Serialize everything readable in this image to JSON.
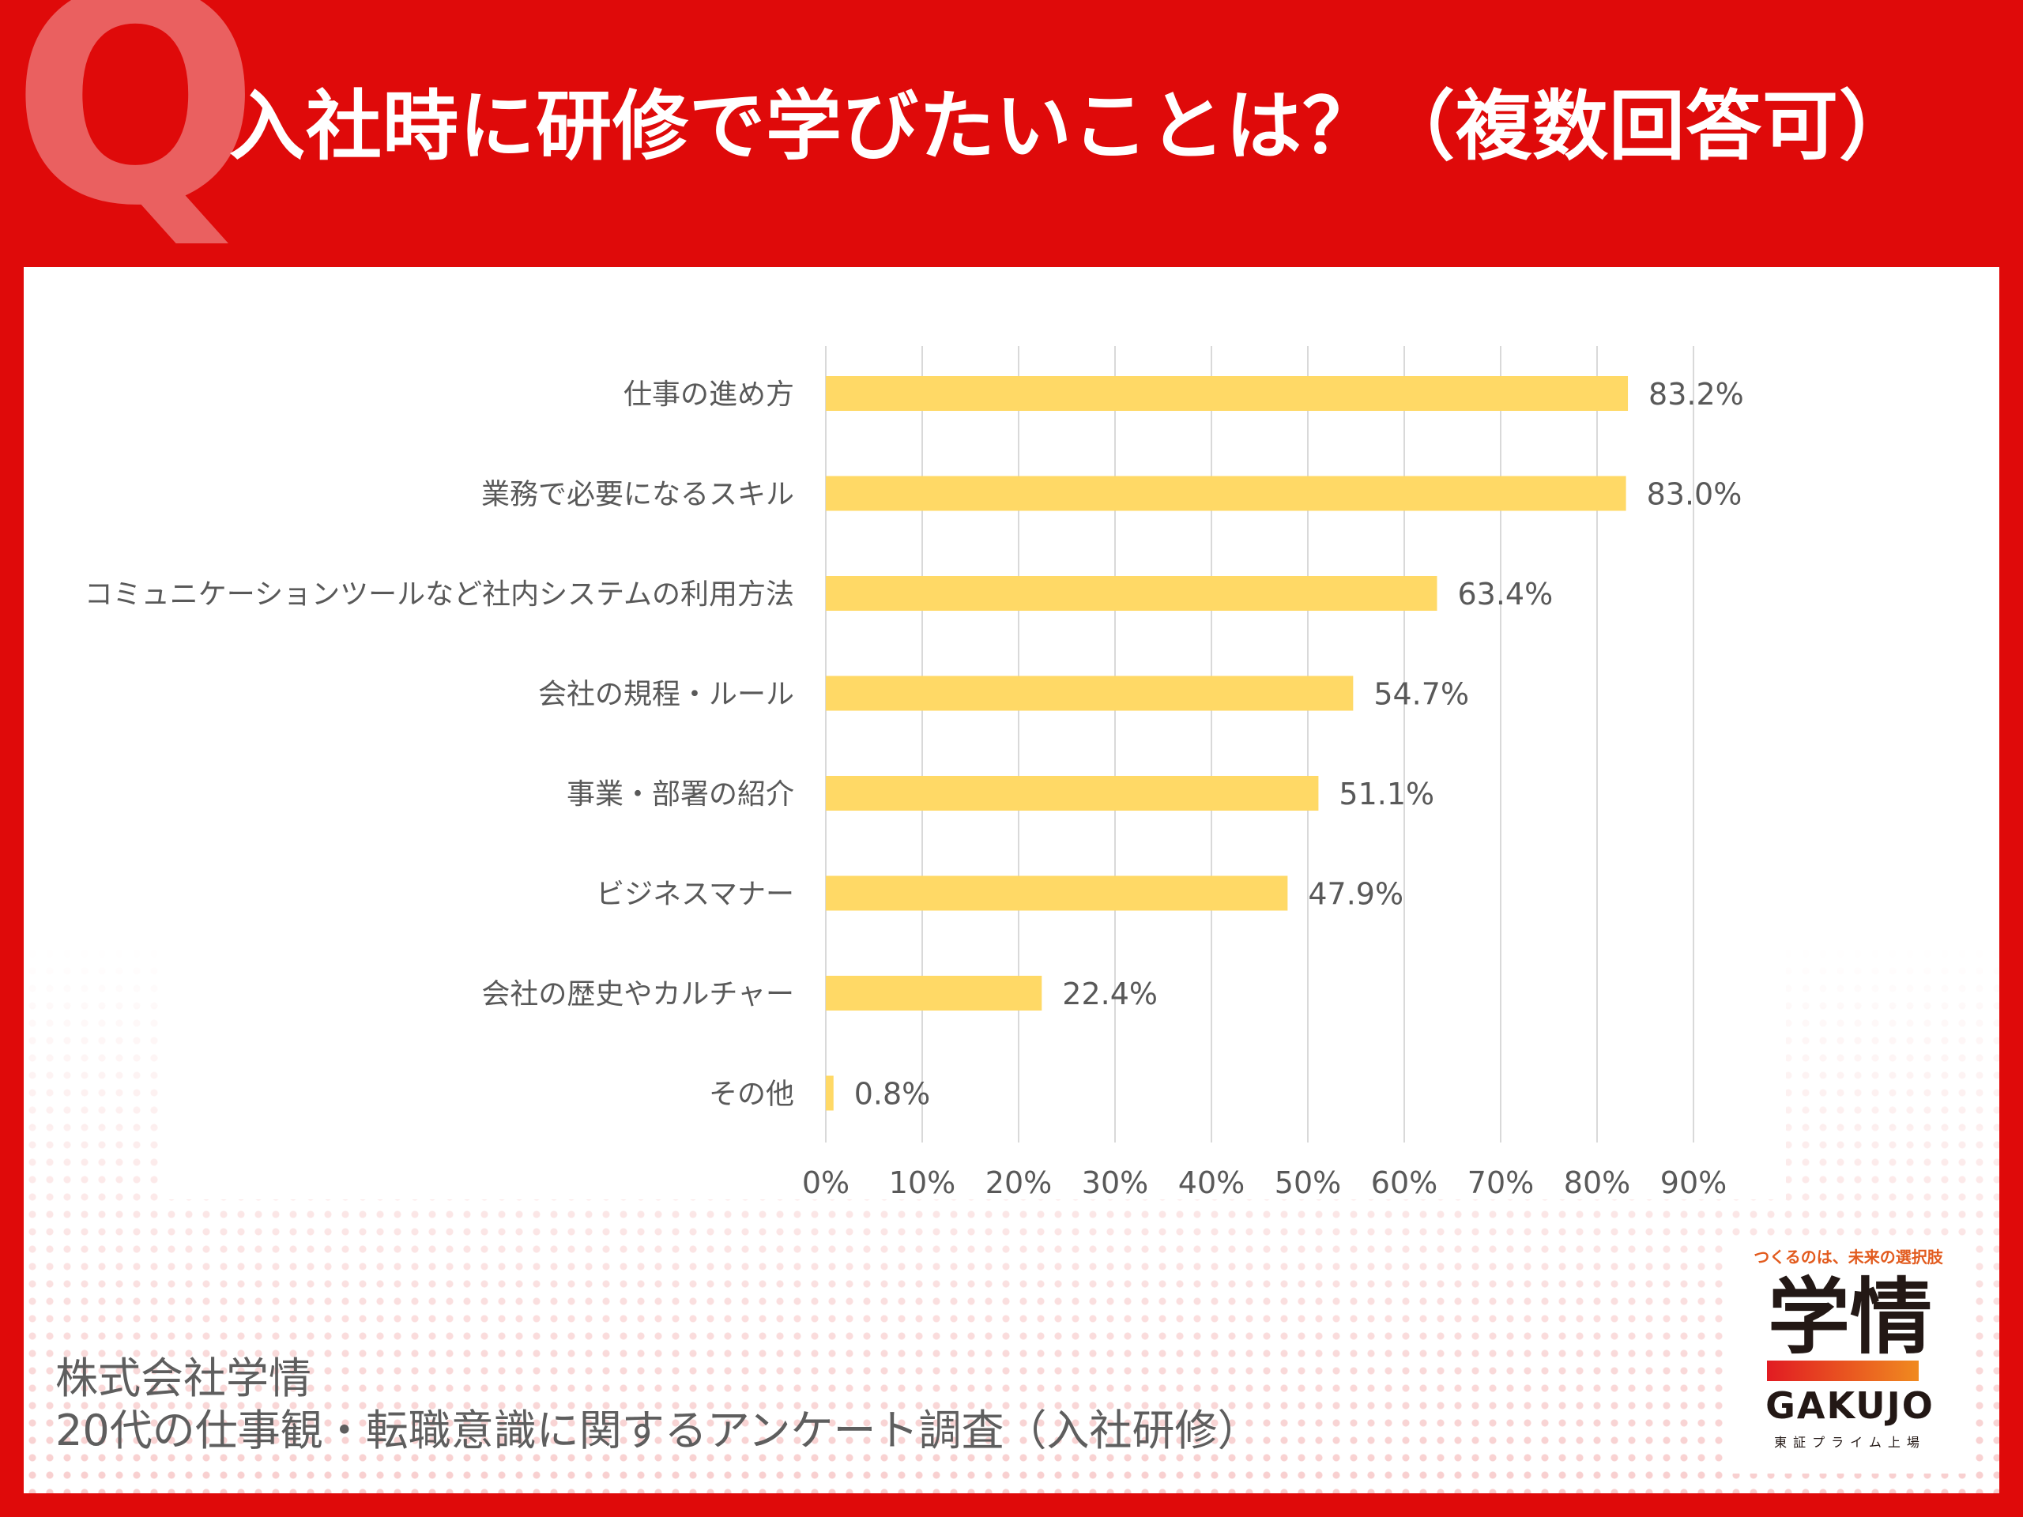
{
  "header": {
    "q_mark": "Q",
    "title": "入社時に研修で学びたいことは？（複数回答可）"
  },
  "colors": {
    "background": "#df0a0a",
    "q_mark": "#ea6060",
    "bar": "#ffd966",
    "gridline": "#d9d9d9",
    "text": "#595959"
  },
  "chart_data": {
    "type": "bar",
    "orientation": "horizontal",
    "categories": [
      "仕事の進め方",
      "業務で必要になるスキル",
      "コミュニケーションツールなど社内システムの利用方法",
      "会社の規程・ルール",
      "事業・部署の紹介",
      "ビジネスマナー",
      "会社の歴史やカルチャー",
      "その他"
    ],
    "values": [
      83.2,
      83.0,
      63.4,
      54.7,
      51.1,
      47.9,
      22.4,
      0.8
    ],
    "value_labels": [
      "83.2%",
      "83.0%",
      "63.4%",
      "54.7%",
      "51.1%",
      "47.9%",
      "22.4%",
      "0.8%"
    ],
    "x_ticks": [
      0,
      10,
      20,
      30,
      40,
      50,
      60,
      70,
      80,
      90
    ],
    "x_tick_labels": [
      "0%",
      "10%",
      "20%",
      "30%",
      "40%",
      "50%",
      "60%",
      "70%",
      "80%",
      "90%"
    ],
    "xlim": [
      0,
      90
    ],
    "grid": "vertical",
    "legend": "none"
  },
  "footer": {
    "source_line1": "株式会社学情",
    "source_line2": "20代の仕事観・転職意識に関するアンケート調査（入社研修）"
  },
  "logo": {
    "tagline": "つくるのは、未来の選択肢",
    "kanji": "学情",
    "name": "GAKUJO",
    "sub": "東証プライム上場"
  }
}
